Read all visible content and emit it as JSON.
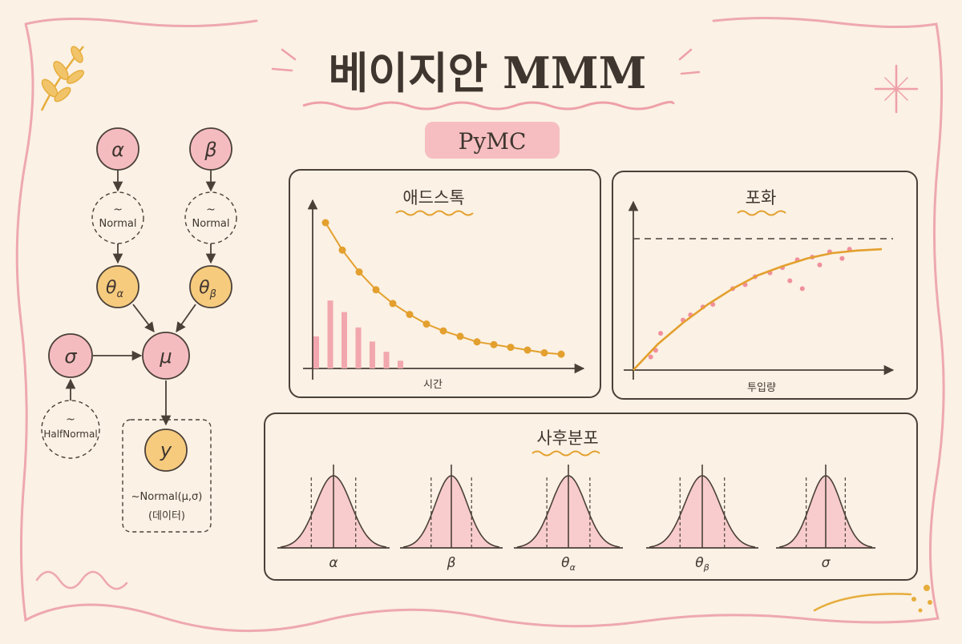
{
  "title": "베이지안 MMM",
  "subtitle": "PyMC",
  "graph": {
    "nodes": {
      "alpha": "α",
      "beta": "β",
      "theta_alpha_base": "θ",
      "theta_alpha_sub": "α",
      "theta_beta_base": "θ",
      "theta_beta_sub": "β",
      "mu": "μ",
      "sigma": "σ",
      "y": "y"
    },
    "priors": {
      "alpha_tilde": "~",
      "alpha_dist": "Normal",
      "beta_tilde": "~",
      "beta_dist": "Normal",
      "sigma_tilde": "~",
      "sigma_dist": "HalfNormal"
    },
    "likelihood": "~Normal(μ,σ)",
    "observed_label": "(데이터)"
  },
  "adstock": {
    "title": "애드스톡",
    "xlabel": "시간"
  },
  "saturation": {
    "title": "포화",
    "xlabel": "투입량"
  },
  "posterior": {
    "title": "사후분포",
    "labels": [
      {
        "base": "α",
        "sub": ""
      },
      {
        "base": "β",
        "sub": ""
      },
      {
        "base": "θ",
        "sub": "α"
      },
      {
        "base": "θ",
        "sub": "β"
      },
      {
        "base": "σ",
        "sub": ""
      }
    ]
  },
  "colors": {
    "background": "#fbf1e4",
    "border_pink": "#eea8b0",
    "node_pink": "#f5bcc0",
    "node_orange": "#f6cb7e",
    "accent_orange": "#e3a02e",
    "ink": "#4a4038"
  },
  "chart_data": [
    {
      "type": "line",
      "title": "애드스톡",
      "xlabel": "시간",
      "ylabel": "",
      "series": [
        {
          "values": [
            1.0,
            0.8,
            0.64,
            0.51,
            0.41,
            0.33,
            0.26,
            0.21,
            0.17,
            0.13,
            0.11,
            0.09,
            0.07,
            0.05,
            0.04
          ]
        }
      ],
      "bars": [
        0.25,
        0.53,
        0.44,
        0.32,
        0.21,
        0.13,
        0.06
      ],
      "grid": false
    },
    {
      "type": "scatter",
      "title": "포화",
      "xlabel": "투입량",
      "ylabel": "",
      "asymptote": 1.0,
      "curve": [
        [
          0,
          0
        ],
        [
          0.1,
          0.2
        ],
        [
          0.2,
          0.36
        ],
        [
          0.3,
          0.5
        ],
        [
          0.4,
          0.62
        ],
        [
          0.5,
          0.72
        ],
        [
          0.6,
          0.79
        ],
        [
          0.7,
          0.85
        ],
        [
          0.8,
          0.89
        ],
        [
          0.9,
          0.91
        ],
        [
          1.0,
          0.92
        ]
      ],
      "points": [
        [
          0.07,
          0.1
        ],
        [
          0.09,
          0.15
        ],
        [
          0.11,
          0.28
        ],
        [
          0.2,
          0.38
        ],
        [
          0.23,
          0.42
        ],
        [
          0.28,
          0.48
        ],
        [
          0.32,
          0.5
        ],
        [
          0.4,
          0.62
        ],
        [
          0.45,
          0.65
        ],
        [
          0.49,
          0.71
        ],
        [
          0.55,
          0.74
        ],
        [
          0.6,
          0.78
        ],
        [
          0.63,
          0.68
        ],
        [
          0.68,
          0.62
        ],
        [
          0.66,
          0.84
        ],
        [
          0.72,
          0.86
        ],
        [
          0.75,
          0.8
        ],
        [
          0.79,
          0.9
        ],
        [
          0.84,
          0.85
        ],
        [
          0.87,
          0.92
        ]
      ],
      "grid": false
    },
    {
      "type": "area",
      "title": "사후분포",
      "series": [
        {
          "name": "α",
          "mean": 0,
          "sd": 1
        },
        {
          "name": "β",
          "mean": 0,
          "sd": 1
        },
        {
          "name": "θα",
          "mean": 0,
          "sd": 1
        },
        {
          "name": "θβ",
          "mean": 0,
          "sd": 1
        },
        {
          "name": "σ",
          "mean": 0,
          "sd": 1
        }
      ],
      "grid": false
    }
  ]
}
